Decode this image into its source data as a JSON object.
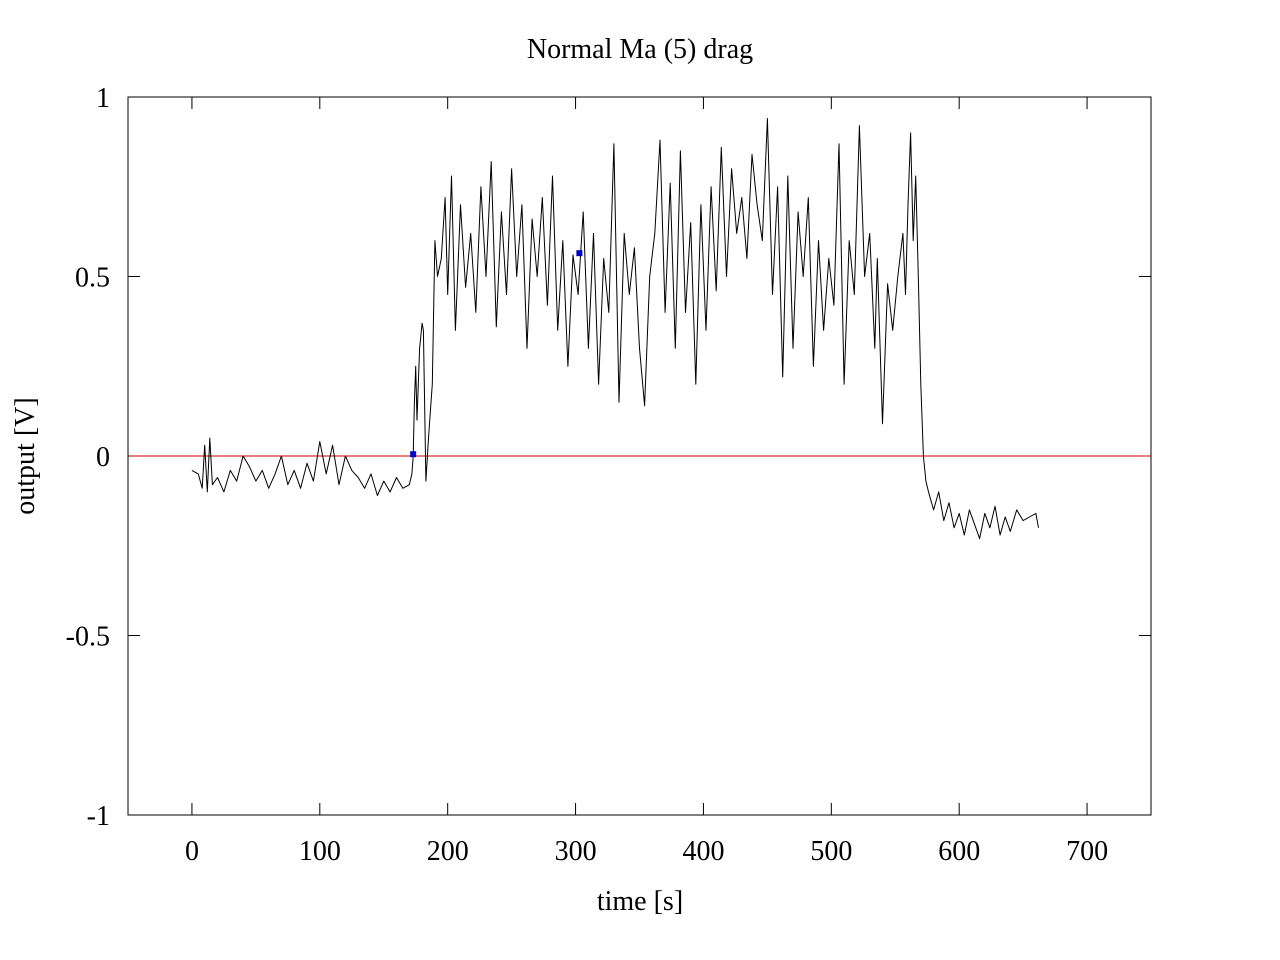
{
  "chart_data": {
    "type": "line",
    "title": "Normal  Ma (5) drag",
    "xlabel": "time [s]",
    "ylabel": "output [V]",
    "xlim": [
      -50,
      750
    ],
    "ylim": [
      -1,
      1
    ],
    "xticks": [
      0,
      100,
      200,
      300,
      400,
      500,
      600,
      700
    ],
    "xtick_labels": [
      "0",
      "100",
      "200",
      "300",
      "400",
      "500",
      "600",
      "700"
    ],
    "yticks": [
      1,
      0.5,
      0,
      -0.5,
      -1
    ],
    "ytick_labels": [
      "1",
      "0.5",
      "0",
      "-0.5",
      "-1"
    ],
    "grid": false,
    "legend": "none",
    "colors": {
      "series": "#000000",
      "reference": "#cc0000",
      "markers": "#0000cc",
      "axes": "#000000"
    },
    "series": [
      {
        "x": [
          0,
          5,
          8,
          10,
          12,
          14,
          16,
          20,
          25,
          30,
          35,
          40,
          45,
          50,
          55,
          60,
          65,
          70,
          75,
          80,
          85,
          90,
          95,
          100,
          105,
          110,
          115,
          120,
          125,
          130,
          135,
          140,
          145,
          150,
          155,
          160,
          165,
          170,
          172,
          173,
          174,
          175,
          176,
          178,
          180,
          181,
          183,
          185,
          188,
          190,
          192,
          195,
          198,
          200,
          203,
          206,
          210,
          214,
          218,
          222,
          226,
          230,
          234,
          238,
          242,
          246,
          250,
          254,
          258,
          262,
          266,
          270,
          274,
          278,
          282,
          286,
          290,
          294,
          298,
          302,
          306,
          310,
          314,
          318,
          322,
          326,
          330,
          334,
          338,
          342,
          346,
          350,
          354,
          358,
          362,
          366,
          370,
          374,
          378,
          382,
          386,
          390,
          394,
          398,
          402,
          406,
          410,
          414,
          418,
          422,
          426,
          430,
          434,
          438,
          442,
          446,
          450,
          454,
          458,
          462,
          466,
          470,
          474,
          478,
          482,
          486,
          490,
          494,
          498,
          502,
          506,
          510,
          514,
          518,
          522,
          526,
          530,
          534,
          536,
          540,
          544,
          548,
          552,
          556,
          558,
          560,
          562,
          564,
          566,
          568,
          570,
          572,
          574,
          576,
          580,
          584,
          588,
          592,
          596,
          600,
          604,
          608,
          612,
          616,
          620,
          624,
          628,
          632,
          636,
          640,
          645,
          650,
          655,
          660,
          662
        ],
        "y": [
          -0.04,
          -0.05,
          -0.09,
          0.03,
          -0.1,
          0.05,
          -0.08,
          -0.06,
          -0.1,
          -0.04,
          -0.07,
          0.0,
          -0.03,
          -0.07,
          -0.04,
          -0.09,
          -0.05,
          0.0,
          -0.08,
          -0.04,
          -0.09,
          -0.02,
          -0.07,
          0.04,
          -0.05,
          0.03,
          -0.08,
          0.0,
          -0.04,
          -0.06,
          -0.09,
          -0.05,
          -0.11,
          -0.07,
          -0.1,
          -0.06,
          -0.09,
          -0.08,
          -0.05,
          0.0,
          0.15,
          0.25,
          0.1,
          0.3,
          0.37,
          0.35,
          -0.07,
          0.05,
          0.2,
          0.6,
          0.5,
          0.55,
          0.72,
          0.45,
          0.78,
          0.35,
          0.7,
          0.47,
          0.62,
          0.4,
          0.75,
          0.5,
          0.82,
          0.36,
          0.68,
          0.45,
          0.8,
          0.5,
          0.7,
          0.3,
          0.66,
          0.5,
          0.72,
          0.42,
          0.78,
          0.35,
          0.6,
          0.25,
          0.56,
          0.45,
          0.68,
          0.3,
          0.62,
          0.2,
          0.55,
          0.4,
          0.87,
          0.15,
          0.62,
          0.45,
          0.58,
          0.3,
          0.14,
          0.5,
          0.62,
          0.88,
          0.4,
          0.76,
          0.3,
          0.85,
          0.4,
          0.65,
          0.2,
          0.7,
          0.35,
          0.75,
          0.46,
          0.86,
          0.5,
          0.8,
          0.62,
          0.72,
          0.55,
          0.84,
          0.7,
          0.6,
          0.94,
          0.45,
          0.75,
          0.22,
          0.78,
          0.3,
          0.68,
          0.5,
          0.72,
          0.25,
          0.6,
          0.35,
          0.55,
          0.42,
          0.87,
          0.2,
          0.6,
          0.45,
          0.92,
          0.5,
          0.62,
          0.3,
          0.55,
          0.09,
          0.48,
          0.35,
          0.5,
          0.62,
          0.45,
          0.7,
          0.9,
          0.6,
          0.78,
          0.5,
          0.2,
          0.0,
          -0.07,
          -0.1,
          -0.15,
          -0.1,
          -0.18,
          -0.13,
          -0.2,
          -0.16,
          -0.22,
          -0.15,
          -0.19,
          -0.23,
          -0.16,
          -0.2,
          -0.14,
          -0.22,
          -0.17,
          -0.21,
          -0.15,
          -0.18,
          -0.17,
          -0.16,
          -0.2
        ]
      }
    ],
    "reference_line": {
      "y": 0
    },
    "markers": [
      {
        "x": 173,
        "y": 0.005
      },
      {
        "x": 303,
        "y": 0.565
      }
    ]
  }
}
